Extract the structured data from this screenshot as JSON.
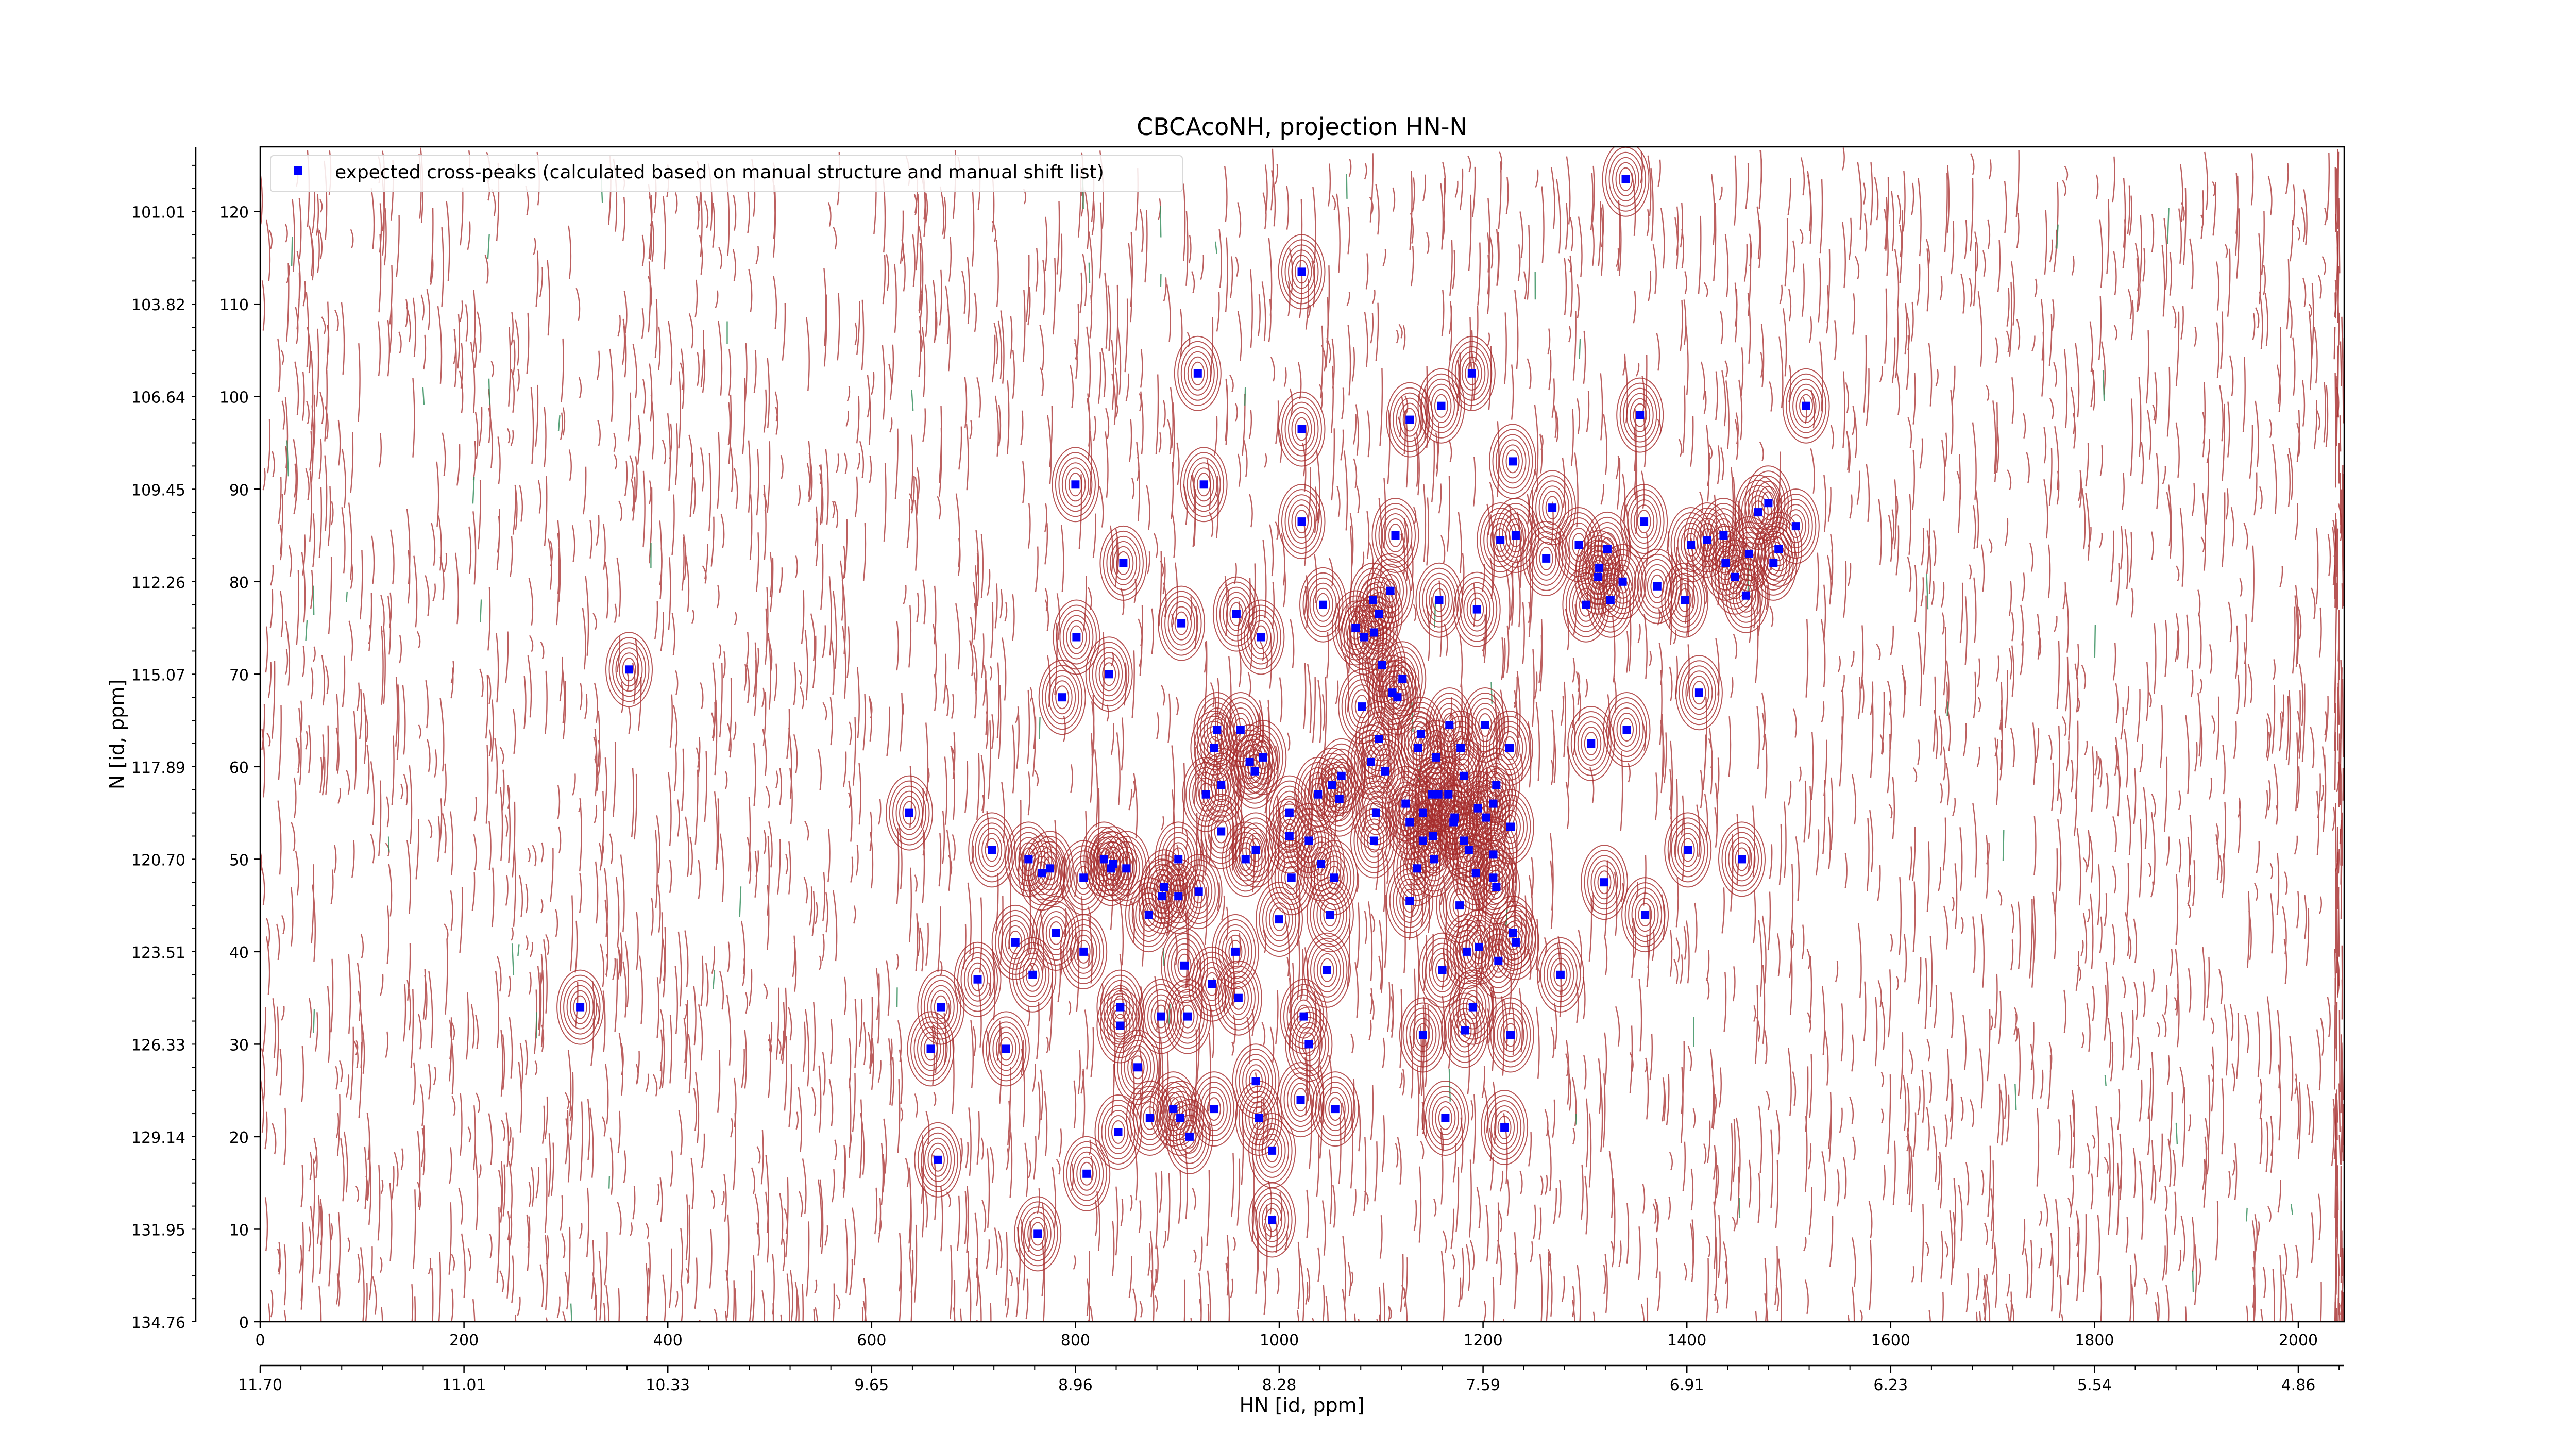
{
  "colors": {
    "positive_contour": "#a52a2a",
    "negative_contour": "#2e8b57",
    "peak_marker": "#0000ff",
    "axis": "#000000"
  },
  "chart_data": {
    "type": "scatter",
    "title": "CBCAcoNH, projection HN-N",
    "xlabel": "HN [id, ppm]",
    "ylabel": "N [id, ppm]",
    "xlim": [
      0,
      2045
    ],
    "ylim": [
      0,
      127
    ],
    "grid": false,
    "legend": {
      "position": "top-left"
    },
    "x_index_ticks": [
      "0",
      "200",
      "400",
      "600",
      "800",
      "1000",
      "1200",
      "1400",
      "1600",
      "1800",
      "2000"
    ],
    "x_ppm_ticks": [
      {
        "at": 0,
        "label": "11.70"
      },
      {
        "at": 200,
        "label": "11.01"
      },
      {
        "at": 400,
        "label": "10.33"
      },
      {
        "at": 600,
        "label": "9.65"
      },
      {
        "at": 800,
        "label": "8.96"
      },
      {
        "at": 1000,
        "label": "8.28"
      },
      {
        "at": 1200,
        "label": "7.59"
      },
      {
        "at": 1400,
        "label": "6.91"
      },
      {
        "at": 1600,
        "label": "6.23"
      },
      {
        "at": 1800,
        "label": "5.54"
      },
      {
        "at": 2000,
        "label": "4.86"
      }
    ],
    "y_index_ticks": [
      "0",
      "10",
      "20",
      "30",
      "40",
      "50",
      "60",
      "70",
      "80",
      "90",
      "100",
      "110",
      "120"
    ],
    "y_ppm_ticks": [
      "134.76",
      "131.95",
      "129.14",
      "126.33",
      "123.51",
      "120.70",
      "117.89",
      "115.07",
      "112.26",
      "109.45",
      "106.64",
      "103.82",
      "101.01"
    ],
    "series": [
      {
        "name": "expected cross-peaks (calculated based on manual structure and manual shift list)",
        "marker": "s",
        "points": [
          [
            1340,
            123.5
          ],
          [
            1022,
            113.5
          ],
          [
            920,
            102.5
          ],
          [
            1189,
            102.5
          ],
          [
            1159,
            99
          ],
          [
            1517,
            99
          ],
          [
            1354,
            98
          ],
          [
            1022,
            96.5
          ],
          [
            1128,
            97.5
          ],
          [
            1229,
            93
          ],
          [
            800,
            90.5
          ],
          [
            926,
            90.5
          ],
          [
            1268,
            88
          ],
          [
            1022,
            86.5
          ],
          [
            1157,
            78
          ],
          [
            1114,
            85
          ],
          [
            1232,
            85
          ],
          [
            1358,
            86.5
          ],
          [
            1470,
            87.5
          ],
          [
            1507,
            86
          ],
          [
            1217,
            84.5
          ],
          [
            1294,
            84
          ],
          [
            1322,
            83.5
          ],
          [
            1480,
            88.5
          ],
          [
            1404,
            84
          ],
          [
            1490,
            83.5
          ],
          [
            1420,
            84.5
          ],
          [
            1461,
            83
          ],
          [
            1436,
            85
          ],
          [
            1262,
            82.5
          ],
          [
            1485,
            82
          ],
          [
            1438,
            82
          ],
          [
            1314,
            81.5
          ],
          [
            1337,
            80
          ],
          [
            1313,
            80.5
          ],
          [
            1447,
            80.5
          ],
          [
            1325,
            78
          ],
          [
            1371,
            79.5
          ],
          [
            1109,
            79
          ],
          [
            1398,
            78
          ],
          [
            1458,
            78.5
          ],
          [
            847,
            82
          ],
          [
            1092,
            78
          ],
          [
            1301,
            77.5
          ],
          [
            904,
            75.5
          ],
          [
            1043,
            77.5
          ],
          [
            1194,
            77
          ],
          [
            958,
            76.5
          ],
          [
            1075,
            75
          ],
          [
            1093,
            74.5
          ],
          [
            1083,
            74
          ],
          [
            801,
            74
          ],
          [
            982,
            74
          ],
          [
            1098,
            76.5
          ],
          [
            1101,
            71
          ],
          [
            787,
            67.5
          ],
          [
            362,
            70.5
          ],
          [
            833,
            70
          ],
          [
            1412,
            68
          ],
          [
            1121,
            69.5
          ],
          [
            1081,
            66.5
          ],
          [
            1111,
            68
          ],
          [
            939,
            64
          ],
          [
            1167,
            64.5
          ],
          [
            1306,
            62.5
          ],
          [
            1116,
            67.5
          ],
          [
            1341,
            64
          ],
          [
            962,
            64
          ],
          [
            1202,
            64.5
          ],
          [
            1098,
            63
          ],
          [
            1136,
            62
          ],
          [
            1139,
            63.5
          ],
          [
            1154,
            61
          ],
          [
            936,
            62
          ],
          [
            1226,
            62
          ],
          [
            1178,
            62
          ],
          [
            971,
            60.5
          ],
          [
            1090,
            60.5
          ],
          [
            1181,
            59
          ],
          [
            984,
            61
          ],
          [
            1061,
            59
          ],
          [
            976,
            59.5
          ],
          [
            1104,
            59.5
          ],
          [
            1059,
            56.5
          ],
          [
            1210,
            56
          ],
          [
            1195,
            55.5
          ],
          [
            1171,
            54
          ],
          [
            1095,
            55
          ],
          [
            1124,
            56
          ],
          [
            1141,
            55
          ],
          [
            1213,
            58
          ],
          [
            1166,
            57
          ],
          [
            1150,
            57
          ],
          [
            928,
            57
          ],
          [
            1052,
            58
          ],
          [
            1156,
            57
          ],
          [
            943,
            58
          ],
          [
            1172,
            54.5
          ],
          [
            1010,
            55
          ],
          [
            1128,
            54
          ],
          [
            1038,
            57
          ],
          [
            637,
            55
          ],
          [
            1203,
            54.5
          ],
          [
            1141,
            52
          ],
          [
            1181,
            52
          ],
          [
            718,
            51
          ],
          [
            1029,
            52
          ],
          [
            1186,
            51
          ],
          [
            1227,
            53.5
          ],
          [
            943,
            53
          ],
          [
            1151,
            52.5
          ],
          [
            1093,
            52
          ],
          [
            1401,
            51
          ],
          [
            754,
            50
          ],
          [
            901,
            50
          ],
          [
            837,
            49.5
          ],
          [
            1152,
            50
          ],
          [
            1210,
            50.5
          ],
          [
            1454,
            50
          ],
          [
            1041,
            49.5
          ],
          [
            977,
            51
          ],
          [
            1010,
            52.5
          ],
          [
            828,
            50
          ],
          [
            967,
            50
          ],
          [
            1135,
            49
          ],
          [
            1193,
            48.5
          ],
          [
            1012,
            48
          ],
          [
            1054,
            48
          ],
          [
            1210,
            48
          ],
          [
            1319,
            47.5
          ],
          [
            1213,
            47
          ],
          [
            887,
            47
          ],
          [
            901,
            46
          ],
          [
            921,
            46.5
          ],
          [
            1128,
            45.5
          ],
          [
            1177,
            45
          ],
          [
            1050,
            44
          ],
          [
            1359,
            44
          ],
          [
            1000,
            43.5
          ],
          [
            872,
            44
          ],
          [
            835,
            49
          ],
          [
            850,
            49
          ],
          [
            775,
            49
          ],
          [
            767,
            48.5
          ],
          [
            808,
            48
          ],
          [
            885,
            46
          ],
          [
            1229,
            42
          ],
          [
            741,
            41
          ],
          [
            1232,
            41
          ],
          [
            957,
            40
          ],
          [
            808,
            40
          ],
          [
            1184,
            40
          ],
          [
            781,
            42
          ],
          [
            1196,
            40.5
          ],
          [
            1215,
            39
          ],
          [
            907,
            38.5
          ],
          [
            1047,
            38
          ],
          [
            1160,
            38
          ],
          [
            1276,
            37.5
          ],
          [
            758,
            37.5
          ],
          [
            704,
            37
          ],
          [
            934,
            36.5
          ],
          [
            1190,
            34
          ],
          [
            844,
            34
          ],
          [
            960,
            35
          ],
          [
            1024,
            33
          ],
          [
            884,
            33
          ],
          [
            668,
            34
          ],
          [
            314,
            34
          ],
          [
            910,
            33
          ],
          [
            844,
            32
          ],
          [
            1227,
            31
          ],
          [
            1141,
            31
          ],
          [
            1029,
            30
          ],
          [
            658,
            29.5
          ],
          [
            732,
            29.5
          ],
          [
            1182,
            31.5
          ],
          [
            861,
            27.5
          ],
          [
            977,
            26
          ],
          [
            1055,
            23
          ],
          [
            896,
            23
          ],
          [
            936,
            23
          ],
          [
            1163,
            22
          ],
          [
            912,
            20
          ],
          [
            1021,
            24
          ],
          [
            980,
            22
          ],
          [
            842,
            20.5
          ],
          [
            993,
            18.5
          ],
          [
            1221,
            21
          ],
          [
            873,
            22
          ],
          [
            903,
            22
          ],
          [
            665,
            17.5
          ],
          [
            811,
            16
          ],
          [
            993,
            11
          ],
          [
            763,
            9.5
          ]
        ]
      }
    ]
  }
}
